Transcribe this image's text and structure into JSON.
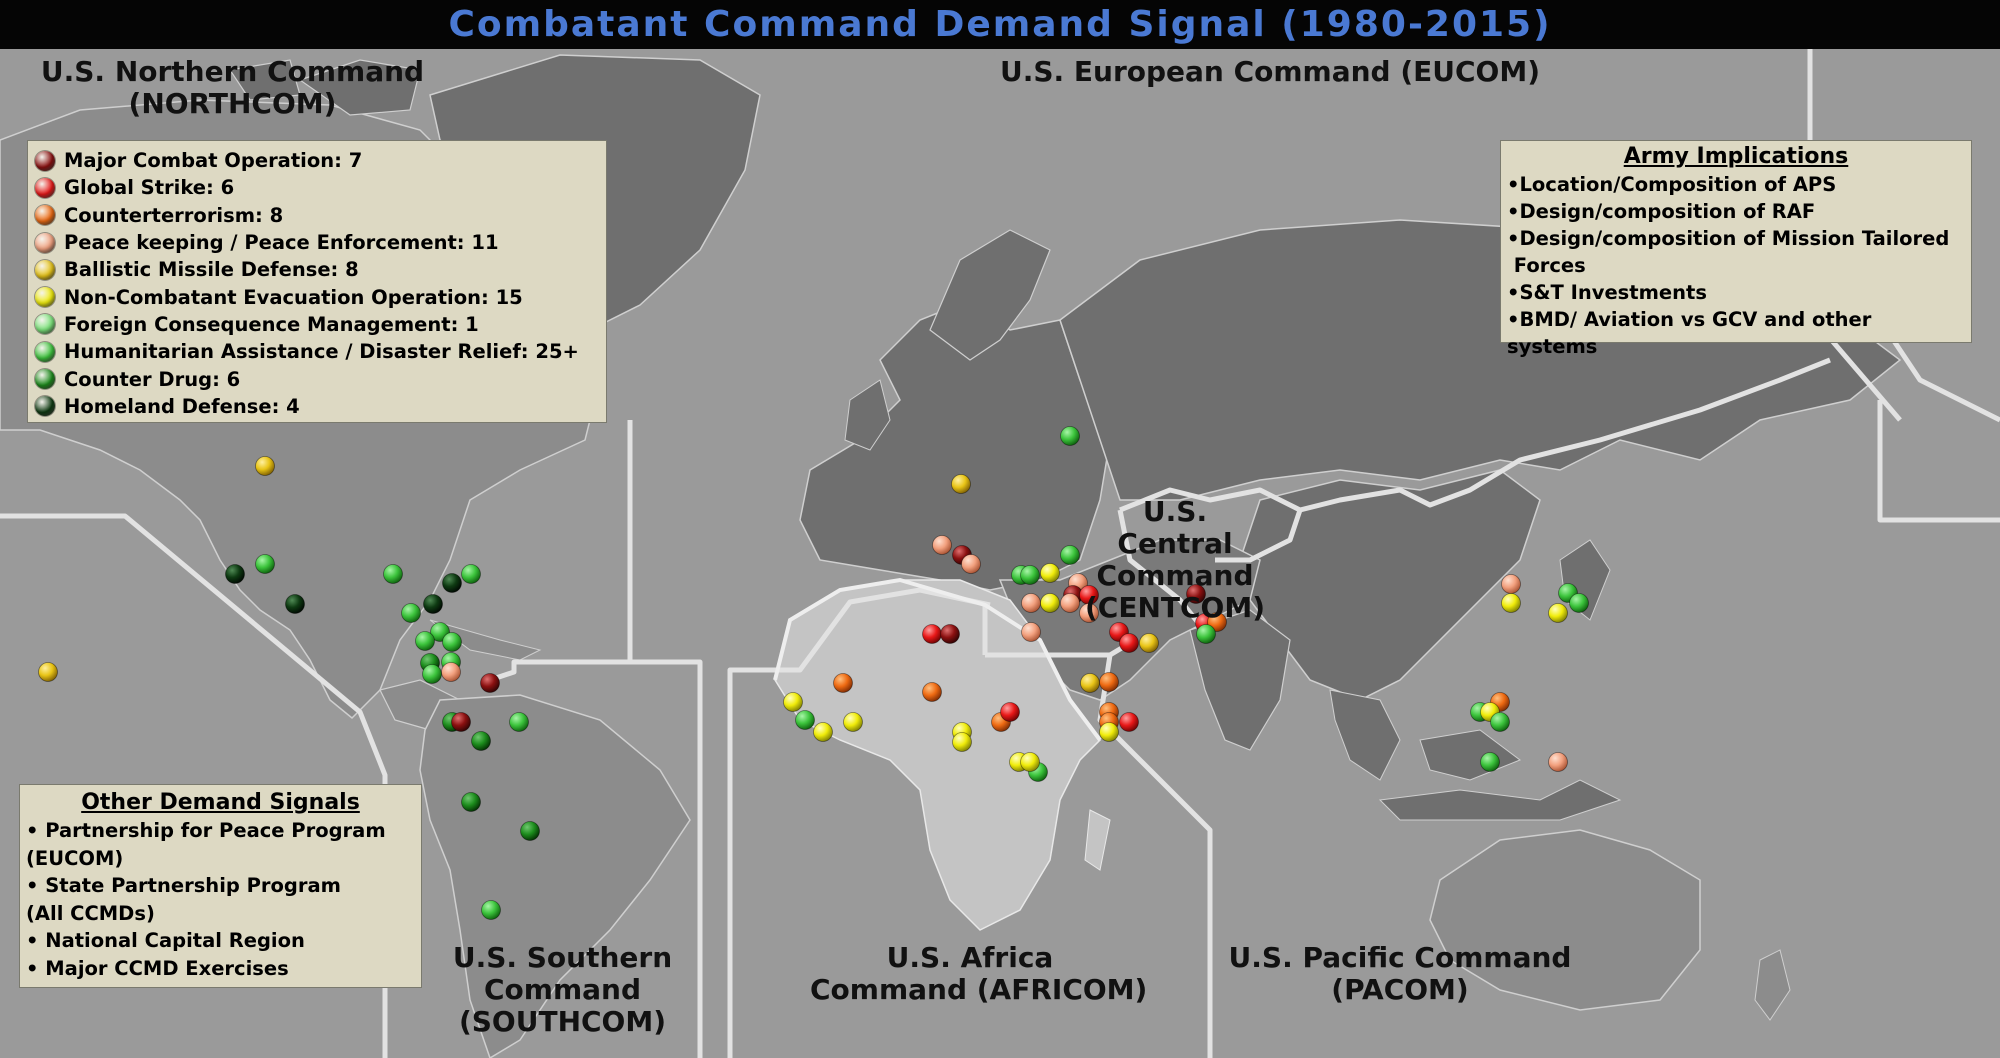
{
  "title": "Combatant Command Demand Signal (1980-2015)",
  "commands": {
    "northcom": [
      "U.S. Northern Command",
      "(NORTHCOM)"
    ],
    "eucom": [
      "U.S. European Command (EUCOM)"
    ],
    "centcom": [
      "U.S.",
      "Central",
      "Command",
      "(CENTCOM)"
    ],
    "southcom": [
      "U.S. Southern",
      "Command",
      "(SOUTHCOM)"
    ],
    "africom": [
      "U.S. Africa",
      "Command (AFRICOM)"
    ],
    "pacom": [
      "U.S. Pacific Command",
      "(PACOM)"
    ]
  },
  "legend": [
    {
      "key": "mco",
      "label": "Major Combat Operation: 7",
      "color": "#8b1010"
    },
    {
      "key": "gs",
      "label": "Global Strike: 6",
      "color": "#e81818"
    },
    {
      "key": "ct",
      "label": "Counterterrorism: 8",
      "color": "#ee6a12"
    },
    {
      "key": "pk",
      "label": "Peace keeping / Peace Enforcement: 11",
      "color": "#f2a07e"
    },
    {
      "key": "bmd",
      "label": "Ballistic Missile Defense: 8",
      "color": "#e8c416"
    },
    {
      "key": "neo",
      "label": "Non-Combatant Evacuation Operation: 15",
      "color": "#f0ec0a"
    },
    {
      "key": "fcm",
      "label": "Foreign Consequence Management: 1",
      "color": "#7ae47a"
    },
    {
      "key": "hadr",
      "label": "Humanitarian Assistance / Disaster Relief: 25+",
      "color": "#3cc43c"
    },
    {
      "key": "cd",
      "label": "Counter Drug: 6",
      "color": "#1c8c1c"
    },
    {
      "key": "hd",
      "label": "Homeland Defense: 4",
      "color": "#0e3a12"
    }
  ],
  "implications": {
    "title": "Army Implications",
    "items": [
      "•Location/Composition of APS",
      "•Design/composition of RAF",
      "•Design/composition of Mission Tailored",
      " Forces",
      "•S&T Investments",
      "•BMD/ Aviation vs GCV and other systems"
    ]
  },
  "other_signals": {
    "title": "Other Demand Signals",
    "items": [
      "• Partnership for Peace Program",
      "(EUCOM)",
      "• State Partnership Program",
      "(All CCMDs)",
      "• National Capital Region",
      "• Major CCMD Exercises"
    ]
  }
}
